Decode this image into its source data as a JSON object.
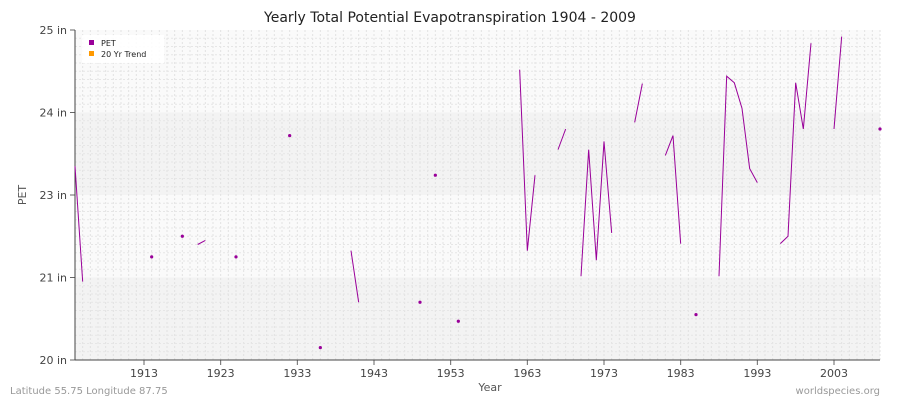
{
  "chart_data": {
    "type": "line",
    "title": "Yearly Total Potential Evapotranspiration 1904 - 2009",
    "xlabel": "Year",
    "ylabel": "PET",
    "xlim": [
      1904,
      2009
    ],
    "ylim_display": [
      "20 in",
      "21 in",
      "23 in",
      "24 in",
      "25 in"
    ],
    "xticks": [
      "1913",
      "1923",
      "1933",
      "1943",
      "1953",
      "1963",
      "1973",
      "1983",
      "1993",
      "2003"
    ],
    "grid": true,
    "legend_position": "top-left",
    "legend": [
      "PET",
      "20 Yr Trend"
    ],
    "series": [
      {
        "name": "PET",
        "color": "#990099",
        "points": [
          [
            1904,
            23.35
          ],
          [
            1905,
            20.95
          ],
          [
            1914,
            21.5
          ],
          [
            1918,
            22.0
          ],
          [
            1920,
            21.8
          ],
          [
            1921,
            21.9
          ],
          [
            1925,
            21.5
          ],
          [
            1932,
            23.72
          ],
          [
            1936,
            20.15
          ],
          [
            1940,
            21.65
          ],
          [
            1941,
            20.7
          ],
          [
            1949,
            20.7
          ],
          [
            1951,
            23.24
          ],
          [
            1954,
            20.47
          ],
          [
            1962,
            24.52
          ],
          [
            1963,
            21.65
          ],
          [
            1964,
            23.24
          ],
          [
            1967,
            23.55
          ],
          [
            1968,
            23.8
          ],
          [
            1970,
            21.03
          ],
          [
            1971,
            23.55
          ],
          [
            1972,
            21.42
          ],
          [
            1973,
            23.65
          ],
          [
            1974,
            22.08
          ],
          [
            1977,
            23.88
          ],
          [
            1978,
            24.35
          ],
          [
            1981,
            23.48
          ],
          [
            1982,
            23.72
          ],
          [
            1983,
            21.82
          ],
          [
            1985,
            20.55
          ],
          [
            1988,
            21.03
          ],
          [
            1989,
            24.44
          ],
          [
            1990,
            24.36
          ],
          [
            1991,
            24.05
          ],
          [
            1992,
            23.32
          ],
          [
            1993,
            23.15
          ],
          [
            1996,
            21.82
          ],
          [
            1997,
            22.0
          ],
          [
            1998,
            24.36
          ],
          [
            1999,
            23.8
          ],
          [
            2000,
            24.84
          ],
          [
            2003,
            23.8
          ],
          [
            2004,
            24.92
          ],
          [
            2009,
            23.8
          ]
        ]
      },
      {
        "name": "20 Yr Trend",
        "color": "#ff9900",
        "points": []
      }
    ]
  },
  "footer": {
    "left": "Latitude 55.75 Longitude 87.75",
    "right": "worldspecies.org"
  }
}
